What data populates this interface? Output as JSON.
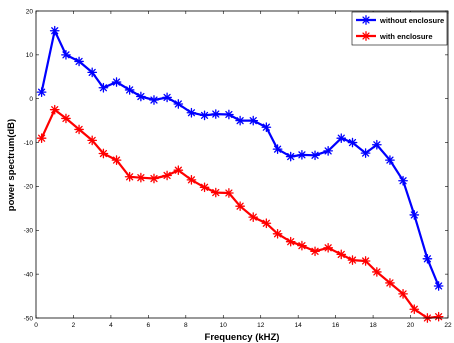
{
  "chart_data": {
    "type": "line",
    "title": "",
    "xlabel": "Frequency (kHZ)",
    "ylabel": "power spectrum(dB)",
    "xlim": [
      0,
      22
    ],
    "ylim": [
      -50,
      20
    ],
    "xticks": [
      0,
      2,
      4,
      6,
      8,
      10,
      12,
      14,
      16,
      18,
      20,
      22
    ],
    "yticks": [
      20,
      10,
      0,
      -10,
      -20,
      -30,
      -40,
      -50
    ],
    "grid": false,
    "legend_position": "top-right",
    "series": [
      {
        "name": "without enclosure",
        "color": "#0000ff",
        "marker": "asterisk",
        "x": [
          0.3,
          1.0,
          1.6,
          2.3,
          3.0,
          3.6,
          4.3,
          5.0,
          5.6,
          6.3,
          7.0,
          7.6,
          8.3,
          9.0,
          9.6,
          10.3,
          10.9,
          11.6,
          12.3,
          12.9,
          13.6,
          14.2,
          14.9,
          15.6,
          16.3,
          16.9,
          17.6,
          18.2,
          18.9,
          19.6,
          20.2,
          20.9,
          21.5
        ],
        "y": [
          1.5,
          15.5,
          10,
          8.5,
          6,
          2.5,
          3.8,
          2,
          0.5,
          -0.3,
          0.3,
          -1.2,
          -3.2,
          -3.8,
          -3.5,
          -3.6,
          -5,
          -5,
          -6.5,
          -11.5,
          -13.2,
          -12.8,
          -12.9,
          -11.9,
          -9,
          -10,
          -12.4,
          -10.5,
          -14,
          -18.7,
          -26.5,
          -36.5,
          -42.7
        ]
      },
      {
        "name": "with enclosure",
        "color": "#ff0000",
        "marker": "asterisk",
        "x": [
          0.3,
          1.0,
          1.6,
          2.3,
          3.0,
          3.6,
          4.3,
          5.0,
          5.6,
          6.3,
          7.0,
          7.6,
          8.3,
          9.0,
          9.6,
          10.3,
          10.9,
          11.6,
          12.3,
          12.9,
          13.6,
          14.2,
          14.9,
          15.6,
          16.3,
          16.9,
          17.6,
          18.2,
          18.9,
          19.6,
          20.2,
          20.9,
          21.5
        ],
        "y": [
          -9,
          -2.5,
          -4.5,
          -7,
          -9.5,
          -12.5,
          -14,
          -17.8,
          -18,
          -18.2,
          -17.5,
          -16.3,
          -18.5,
          -20.2,
          -21.4,
          -21.5,
          -24.5,
          -27,
          -28.4,
          -30.8,
          -32.6,
          -33.5,
          -34.8,
          -34,
          -35.5,
          -36.8,
          -37,
          -39.5,
          -42,
          -44.5,
          -48,
          -50,
          -49.7
        ]
      }
    ]
  }
}
